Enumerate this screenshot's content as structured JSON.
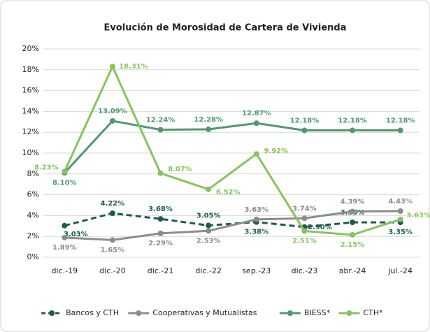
{
  "chart_data": {
    "type": "line",
    "title": "Evolución de Morosidad de Cartera de Vivienda",
    "categories": [
      "dic.-19",
      "dic.-20",
      "dic.-21",
      "dic.-22",
      "sep.-23",
      "dic.-23",
      "abr.-24",
      "jul.-24"
    ],
    "series": [
      {
        "name": "Bancos y CTH",
        "color": "#1b5c4f",
        "dashed": true,
        "values": [
          3.03,
          4.22,
          3.68,
          3.05,
          3.38,
          2.9,
          3.35,
          3.35
        ],
        "value_labels": [
          "3.03%",
          "4.22%",
          "3.68%",
          "3.05%",
          "3.38%",
          "2.90%",
          "3.35%",
          "3.35%"
        ]
      },
      {
        "name": "Cooperativas y Mutualistas",
        "color": "#8c8c8c",
        "values": [
          1.89,
          1.65,
          2.29,
          2.53,
          3.63,
          3.74,
          4.39,
          4.43
        ],
        "value_labels": [
          "1.89%",
          "1.65%",
          "2.29%",
          "2.53%",
          "3.63%",
          "3.74%",
          "4.39%",
          "4.43%"
        ]
      },
      {
        "name": "BIESS*",
        "color": "#4e9a6e",
        "values": [
          8.1,
          13.09,
          12.24,
          12.28,
          12.87,
          12.18,
          12.18,
          12.18
        ],
        "value_labels": [
          "8.10%",
          "13.09%",
          "12.24%",
          "12.28%",
          "12.87%",
          "12.18%",
          "12.18%",
          "12.18%"
        ]
      },
      {
        "name": "CTH*",
        "color": "#86c55c",
        "values": [
          8.23,
          18.31,
          8.07,
          6.52,
          9.92,
          2.51,
          2.15,
          3.63
        ],
        "value_labels": [
          "8.23%",
          "18.31%",
          "8.07%",
          "6.52%",
          "9.92%",
          "2.51%",
          "2.15%",
          "3.63%"
        ]
      }
    ],
    "ylim": [
      0,
      20
    ],
    "yticks": [
      {
        "value": 0,
        "label": "0%"
      },
      {
        "value": 2,
        "label": "2%"
      },
      {
        "value": 4,
        "label": "4%"
      },
      {
        "value": 6,
        "label": "6%"
      },
      {
        "value": 8,
        "label": "8%"
      },
      {
        "value": 10,
        "label": "10%"
      },
      {
        "value": 12,
        "label": "12%"
      },
      {
        "value": 14,
        "label": "14%"
      },
      {
        "value": 16,
        "label": "16%"
      },
      {
        "value": 18,
        "label": "18%"
      },
      {
        "value": 20,
        "label": "20%"
      }
    ],
    "grid": true,
    "legend": "bottom"
  }
}
